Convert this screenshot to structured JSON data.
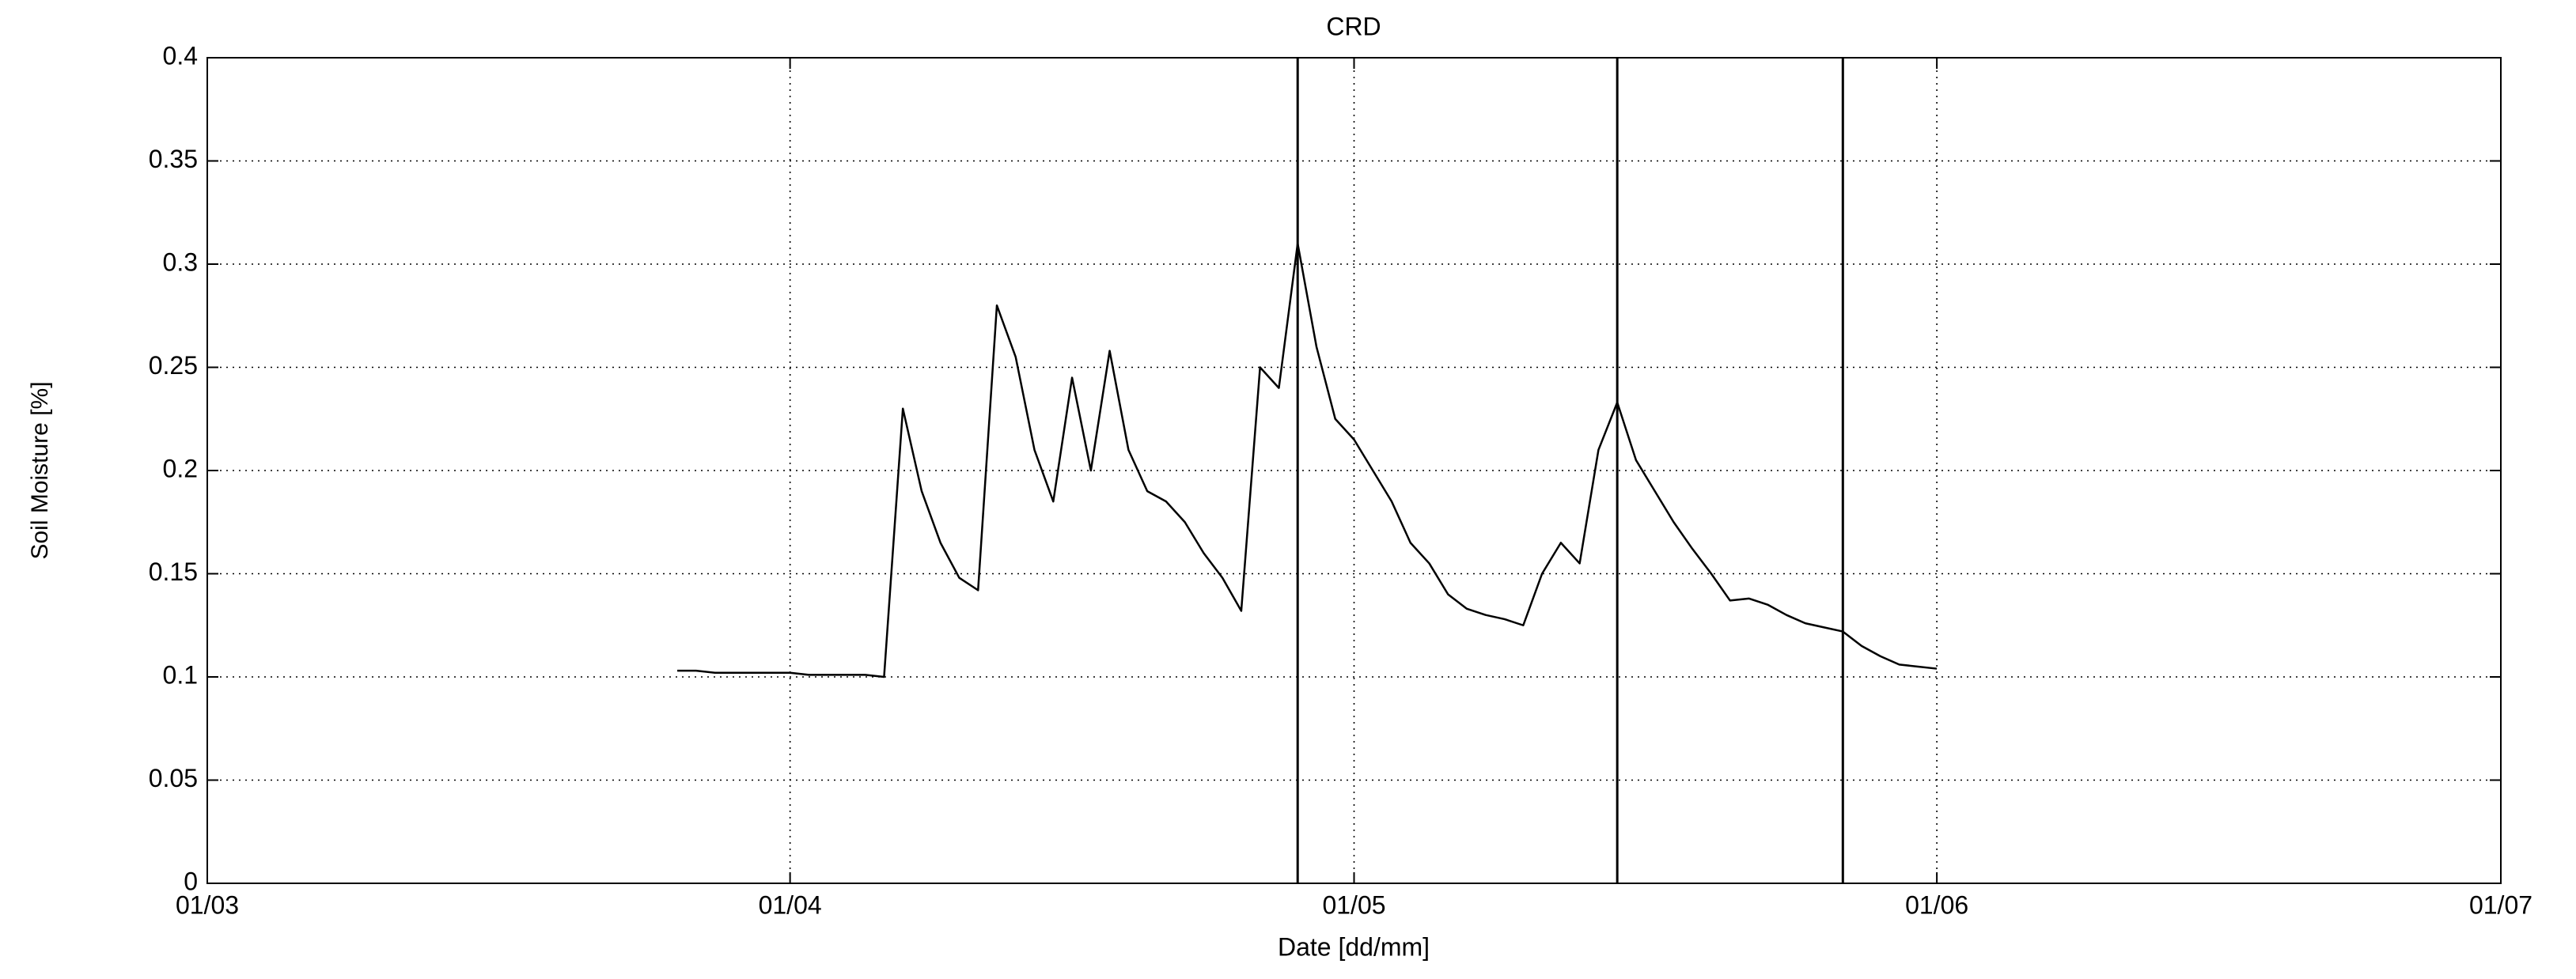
{
  "chart_data": {
    "type": "line",
    "title": "CRD",
    "xlabel": "Date [dd/mm]",
    "ylabel": "Soil Moisture [%]",
    "x": [
      "26/03",
      "27/03",
      "28/03",
      "29/03",
      "30/03",
      "31/03",
      "01/04",
      "02/04",
      "03/04",
      "04/04",
      "05/04",
      "06/04",
      "07/04",
      "08/04",
      "09/04",
      "10/04",
      "11/04",
      "12/04",
      "13/04",
      "14/04",
      "15/04",
      "16/04",
      "17/04",
      "18/04",
      "19/04",
      "20/04",
      "21/04",
      "22/04",
      "23/04",
      "24/04",
      "25/04",
      "26/04",
      "27/04",
      "28/04",
      "29/04",
      "30/04",
      "01/05",
      "02/05",
      "03/05",
      "04/05",
      "05/05",
      "06/05",
      "07/05",
      "08/05",
      "09/05",
      "10/05",
      "11/05",
      "12/05",
      "13/05",
      "14/05",
      "15/05",
      "16/05",
      "17/05",
      "18/05",
      "19/05",
      "20/05",
      "21/05",
      "22/05",
      "23/05",
      "24/05",
      "25/05",
      "26/05",
      "27/05",
      "28/05",
      "29/05",
      "30/05",
      "31/05",
      "01/06"
    ],
    "series": [
      {
        "name": "CRD",
        "color": "#000000",
        "values": [
          0.103,
          0.103,
          0.102,
          0.102,
          0.102,
          0.102,
          0.102,
          0.101,
          0.101,
          0.101,
          0.101,
          0.1,
          0.23,
          0.19,
          0.165,
          0.148,
          0.142,
          0.28,
          0.255,
          0.21,
          0.185,
          0.245,
          0.2,
          0.258,
          0.21,
          0.19,
          0.185,
          0.175,
          0.16,
          0.148,
          0.132,
          0.25,
          0.24,
          0.31,
          0.26,
          0.225,
          0.215,
          0.2,
          0.185,
          0.165,
          0.155,
          0.14,
          0.133,
          0.13,
          0.128,
          0.125,
          0.15,
          0.165,
          0.155,
          0.21,
          0.233,
          0.205,
          0.19,
          0.175,
          0.162,
          0.15,
          0.137,
          0.138,
          0.135,
          0.13,
          0.126,
          0.124,
          0.122,
          0.115,
          0.11,
          0.106,
          0.105,
          0.104
        ]
      }
    ],
    "vlines": [
      "28/04",
      "15/05",
      "27/05"
    ],
    "xlim": [
      "01/03",
      "01/07"
    ],
    "xticks": [
      "01/03",
      "01/04",
      "01/05",
      "01/06",
      "01/07"
    ],
    "ylim": [
      0,
      0.4
    ],
    "yticks": [
      0,
      0.05,
      0.1,
      0.15,
      0.2,
      0.25,
      0.3,
      0.35,
      0.4
    ],
    "grid": true
  }
}
